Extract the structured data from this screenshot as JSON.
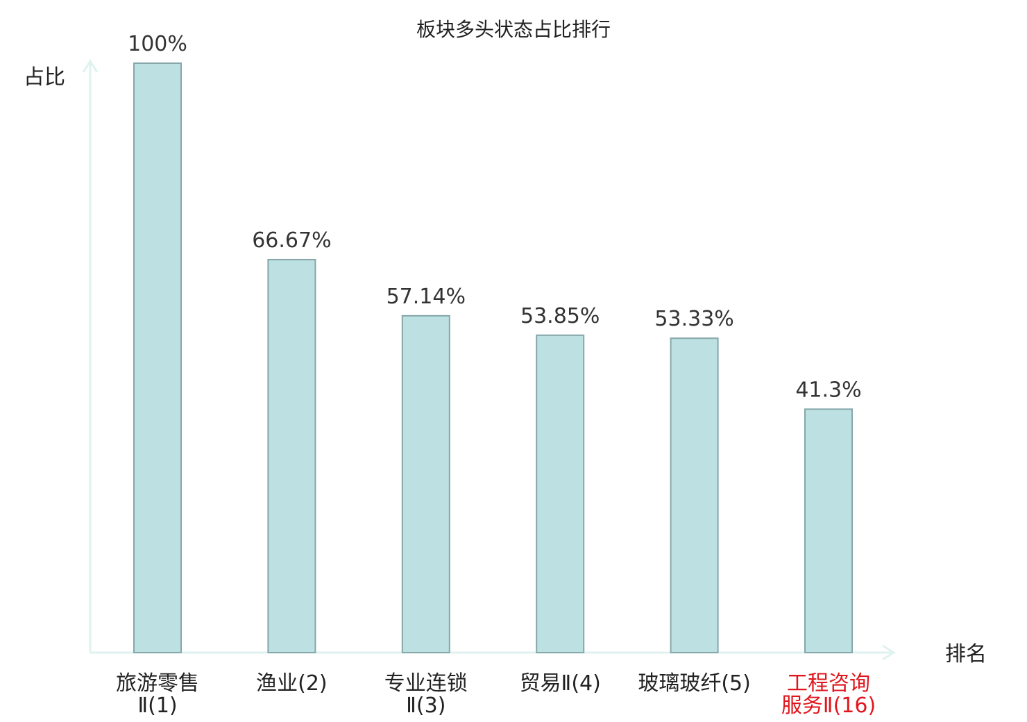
{
  "chart_data": {
    "type": "bar",
    "title": "板块多头状态占比排行",
    "ylabel": "占比",
    "xlabel": "排名",
    "categories": [
      [
        "旅游零售",
        "Ⅱ(1)"
      ],
      [
        "渔业(2)"
      ],
      [
        "专业连锁",
        "Ⅱ(3)"
      ],
      [
        "贸易Ⅱ(4)"
      ],
      [
        "玻璃玻纤(5)"
      ],
      [
        "工程咨询",
        "服务Ⅱ(16)"
      ]
    ],
    "values": [
      100,
      66.67,
      57.14,
      53.85,
      53.33,
      41.3
    ],
    "value_labels": [
      "100%",
      "66.67%",
      "57.14%",
      "53.85%",
      "53.33%",
      "41.3%"
    ],
    "highlight_index": 5,
    "ylim": [
      0,
      100
    ],
    "grid": false,
    "colors": {
      "bar_fill": "#bde0e3",
      "bar_stroke": "#86a7a9",
      "axis": "#e0f2ef",
      "label": "#222222",
      "highlight": "#e0161c"
    }
  }
}
